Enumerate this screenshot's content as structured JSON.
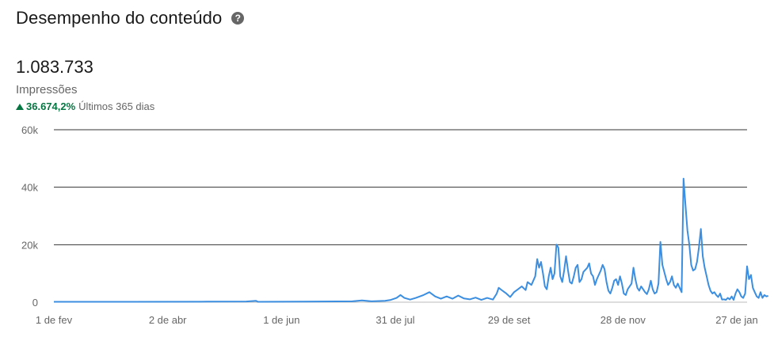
{
  "header": {
    "title": "Desempenho do conteúdo",
    "help_icon": "question-circle-icon"
  },
  "metric": {
    "value": "1.083.733",
    "label": "Impressões",
    "change": "36.674,2%",
    "change_direction": "up",
    "period": "Últimos 365 dias"
  },
  "colors": {
    "line": "#3b8ee0",
    "positive": "#057642",
    "grid": "#333333",
    "muted": "#666666"
  },
  "chart_data": {
    "type": "line",
    "title": "",
    "xlabel": "",
    "ylabel": "",
    "ylim": [
      0,
      60000
    ],
    "ytick_labels": [
      "0",
      "20k",
      "40k",
      "60k"
    ],
    "xtick_labels": [
      "1 de fev",
      "2 de abr",
      "1 de jun",
      "31 de jul",
      "29 de set",
      "28 de nov",
      "27 de jan"
    ],
    "x_range_days": [
      0,
      360
    ],
    "grid": true,
    "series": [
      {
        "values": [
          [
            0,
            150
          ],
          [
            40,
            150
          ],
          [
            80,
            200
          ],
          [
            100,
            250
          ],
          [
            105,
            500
          ],
          [
            106,
            150
          ],
          [
            130,
            200
          ],
          [
            155,
            300
          ],
          [
            160,
            600
          ],
          [
            165,
            300
          ],
          [
            172,
            500
          ],
          [
            175,
            800
          ],
          [
            178,
            1500
          ],
          [
            180,
            2500
          ],
          [
            182,
            1500
          ],
          [
            185,
            900
          ],
          [
            188,
            1500
          ],
          [
            192,
            2500
          ],
          [
            195,
            3500
          ],
          [
            198,
            2000
          ],
          [
            201,
            1200
          ],
          [
            204,
            2000
          ],
          [
            207,
            1200
          ],
          [
            210,
            2300
          ],
          [
            213,
            1300
          ],
          [
            216,
            1000
          ],
          [
            219,
            1600
          ],
          [
            222,
            800
          ],
          [
            225,
            1500
          ],
          [
            228,
            900
          ],
          [
            230,
            3000
          ],
          [
            231,
            5000
          ],
          [
            233,
            4000
          ],
          [
            235,
            3000
          ],
          [
            237,
            1800
          ],
          [
            239,
            3500
          ],
          [
            241,
            4500
          ],
          [
            243,
            5500
          ],
          [
            245,
            4200
          ],
          [
            246,
            7000
          ],
          [
            248,
            6000
          ],
          [
            250,
            9000
          ],
          [
            251,
            15000
          ],
          [
            252,
            12000
          ],
          [
            253,
            14000
          ],
          [
            254,
            10000
          ],
          [
            255,
            5500
          ],
          [
            256,
            4500
          ],
          [
            257,
            9000
          ],
          [
            258,
            12000
          ],
          [
            259,
            8000
          ],
          [
            260,
            10000
          ],
          [
            261,
            20000
          ],
          [
            262,
            19000
          ],
          [
            263,
            9000
          ],
          [
            264,
            7000
          ],
          [
            265,
            11000
          ],
          [
            266,
            16000
          ],
          [
            267,
            11000
          ],
          [
            268,
            7000
          ],
          [
            269,
            6500
          ],
          [
            270,
            9000
          ],
          [
            271,
            12000
          ],
          [
            272,
            13000
          ],
          [
            273,
            7000
          ],
          [
            274,
            8000
          ],
          [
            275,
            10500
          ],
          [
            277,
            12000
          ],
          [
            278,
            13500
          ],
          [
            279,
            10000
          ],
          [
            280,
            9000
          ],
          [
            281,
            6000
          ],
          [
            282,
            8000
          ],
          [
            284,
            11000
          ],
          [
            285,
            13000
          ],
          [
            286,
            11500
          ],
          [
            287,
            7000
          ],
          [
            288,
            4000
          ],
          [
            289,
            3000
          ],
          [
            290,
            5000
          ],
          [
            291,
            7500
          ],
          [
            292,
            8000
          ],
          [
            293,
            6000
          ],
          [
            294,
            9000
          ],
          [
            295,
            6500
          ],
          [
            296,
            3000
          ],
          [
            297,
            2500
          ],
          [
            298,
            4500
          ],
          [
            300,
            6500
          ],
          [
            301,
            12000
          ],
          [
            302,
            8000
          ],
          [
            303,
            5000
          ],
          [
            304,
            4000
          ],
          [
            305,
            5500
          ],
          [
            306,
            4500
          ],
          [
            307,
            3500
          ],
          [
            308,
            2800
          ],
          [
            309,
            4500
          ],
          [
            310,
            7500
          ],
          [
            311,
            4500
          ],
          [
            312,
            3000
          ],
          [
            313,
            3500
          ],
          [
            314,
            6500
          ],
          [
            315,
            21000
          ],
          [
            316,
            13000
          ],
          [
            317,
            10500
          ],
          [
            318,
            8000
          ],
          [
            319,
            6000
          ],
          [
            320,
            7000
          ],
          [
            321,
            9000
          ],
          [
            322,
            6000
          ],
          [
            323,
            5000
          ],
          [
            324,
            6500
          ],
          [
            325,
            5000
          ],
          [
            326,
            3500
          ],
          [
            327,
            43000
          ],
          [
            328,
            34000
          ],
          [
            329,
            25000
          ],
          [
            330,
            20000
          ],
          [
            331,
            13000
          ],
          [
            332,
            11000
          ],
          [
            333,
            11500
          ],
          [
            334,
            14000
          ],
          [
            335,
            19000
          ],
          [
            336,
            25500
          ],
          [
            337,
            16000
          ],
          [
            338,
            12000
          ],
          [
            339,
            9000
          ],
          [
            340,
            6000
          ],
          [
            341,
            4000
          ],
          [
            342,
            3000
          ],
          [
            343,
            3500
          ],
          [
            344,
            2500
          ],
          [
            345,
            1800
          ],
          [
            346,
            3000
          ],
          [
            347,
            900
          ],
          [
            348,
            1000
          ],
          [
            349,
            800
          ],
          [
            350,
            1500
          ],
          [
            351,
            1000
          ],
          [
            352,
            2000
          ],
          [
            353,
            800
          ],
          [
            354,
            3000
          ],
          [
            355,
            4500
          ],
          [
            356,
            3500
          ],
          [
            357,
            2000
          ],
          [
            358,
            1500
          ],
          [
            359,
            3000
          ],
          [
            360,
            12500
          ],
          [
            361,
            8000
          ],
          [
            362,
            9500
          ],
          [
            363,
            5000
          ],
          [
            364,
            3500
          ],
          [
            365,
            2000
          ],
          [
            366,
            1500
          ],
          [
            367,
            3500
          ],
          [
            368,
            1500
          ],
          [
            369,
            2500
          ],
          [
            370,
            2000
          ],
          [
            371,
            2200
          ]
        ]
      }
    ]
  }
}
